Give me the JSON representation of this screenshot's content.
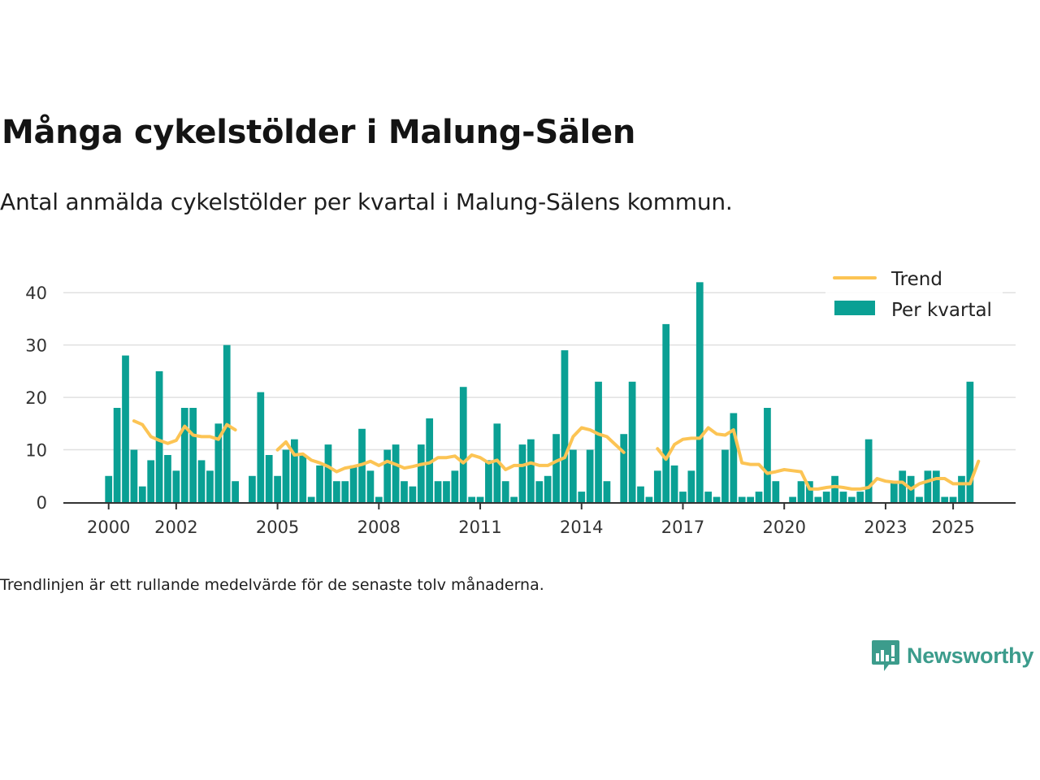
{
  "title": "Många cykelstölder i Malung-Sälen",
  "subtitle": "Antal anmälda cykelstölder per kvartal i Malung-Sälens kommun.",
  "note": "Trendlinjen är ett rullande medelvärde för de senaste tolv månaderna.",
  "brand": {
    "name": "Newsworthy",
    "icon": "newsworthy-logo-icon"
  },
  "colors": {
    "bar": "#0aa094",
    "trend": "#fcc454",
    "grid": "#e0e0e0",
    "axis": "#333333"
  },
  "chart_data": {
    "type": "bar",
    "title": "Många cykelstölder i Malung-Sälen",
    "ylim": [
      0,
      45
    ],
    "yticks": [
      0,
      10,
      20,
      30,
      40
    ],
    "xlim": [
      1998.66,
      2026.85
    ],
    "xticks": [
      {
        "value": 2000,
        "label": "2000"
      },
      {
        "value": 2002,
        "label": "2002"
      },
      {
        "value": 2005,
        "label": "2005"
      },
      {
        "value": 2008,
        "label": "2008"
      },
      {
        "value": 2011,
        "label": "2011"
      },
      {
        "value": 2014,
        "label": "2014"
      },
      {
        "value": 2017,
        "label": "2017"
      },
      {
        "value": 2020,
        "label": "2020"
      },
      {
        "value": 2023,
        "label": "2023"
      },
      {
        "value": 2025,
        "label": "2025"
      }
    ],
    "grid": true,
    "legend": {
      "position": "top-right",
      "entries": [
        {
          "name": "Trend",
          "kind": "line"
        },
        {
          "name": "Per kvartal",
          "kind": "bar"
        }
      ]
    },
    "series": [
      {
        "name": "Per kvartal",
        "kind": "bar",
        "start_year": 2000,
        "period": "quarter",
        "values": [
          5,
          18,
          28,
          10,
          3,
          8,
          25,
          9,
          6,
          18,
          18,
          8,
          6,
          15,
          30,
          4,
          null,
          5,
          21,
          9,
          5,
          10,
          12,
          9,
          1,
          7,
          11,
          4,
          4,
          7,
          14,
          6,
          1,
          10,
          11,
          4,
          3,
          11,
          16,
          4,
          4,
          6,
          22,
          1,
          1,
          8,
          15,
          4,
          1,
          11,
          12,
          4,
          5,
          13,
          29,
          10,
          2,
          10,
          23,
          4,
          null,
          13,
          23,
          3,
          1,
          6,
          34,
          7,
          2,
          6,
          42,
          2,
          1,
          10,
          17,
          1,
          1,
          2,
          18,
          4,
          null,
          1,
          4,
          4,
          1,
          2,
          5,
          2,
          1,
          2,
          12,
          null,
          null,
          4,
          6,
          5,
          1,
          6,
          6,
          1,
          1,
          5,
          23
        ]
      },
      {
        "name": "Trend",
        "kind": "line",
        "segments": [
          {
            "start": 2000.75,
            "values": [
              15.5,
              14.8,
              12.5,
              11.8,
              11.2,
              11.8,
              14.5,
              12.8,
              12.5,
              12.5,
              12,
              14.8,
              13.8
            ]
          },
          {
            "start": 2005,
            "values": [
              10,
              11.5,
              9,
              9.2,
              8,
              7.5,
              6.8,
              5.8,
              6.5,
              6.8,
              7.2,
              7.8,
              7,
              7.8,
              7.2,
              6.5,
              6.8,
              7.2,
              7.5,
              8.5,
              8.5,
              8.8,
              7.5,
              9,
              8.5,
              7.5,
              8,
              6.2,
              7,
              7,
              7.5,
              7,
              7,
              7.8,
              8.5,
              12.5,
              14.2,
              13.8,
              13,
              12.5,
              11,
              9.5
            ]
          },
          {
            "start": 2016.25,
            "values": [
              10.2,
              8.2,
              11,
              12,
              12.2,
              12.2,
              14.2,
              13,
              12.8,
              13.8,
              7.5,
              7.2,
              7.2,
              5.5,
              5.8,
              6.2,
              6,
              5.8,
              2.5,
              2.5,
              2.8,
              3,
              2.8,
              2.5,
              2.5,
              2.8,
              4.5,
              4,
              3.8,
              3.8,
              2.5,
              3.5,
              4,
              4.5,
              4.5,
              3.5,
              3.5,
              3.5,
              7.8
            ]
          }
        ]
      }
    ]
  }
}
